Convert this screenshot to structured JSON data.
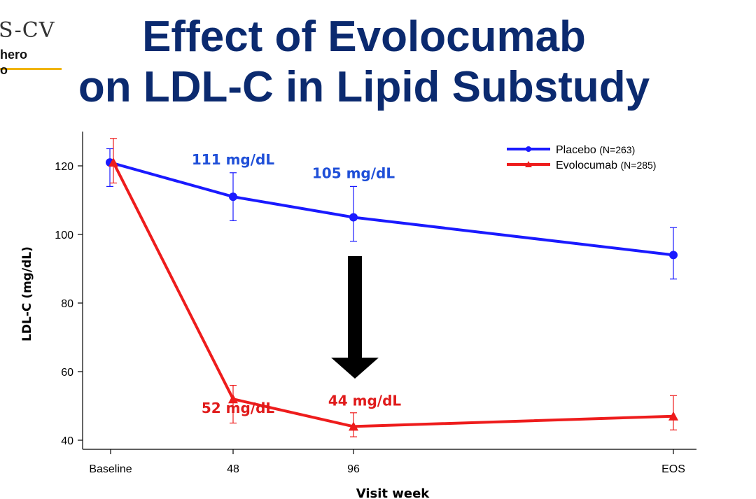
{
  "logo": {
    "text": "S-CV",
    "sub1": "hero",
    "sub2": "o"
  },
  "slide": {
    "title_line1": "Effect of Evolocumab",
    "title_line2": "on LDL-C in Lipid Substudy"
  },
  "chart_data": {
    "type": "line",
    "categories": [
      "Baseline",
      "48",
      "96",
      "EOS"
    ],
    "xlabel": "Visit week",
    "ylabel": "LDL-C (mg/dL)",
    "ylim": [
      38,
      130
    ],
    "yticks": [
      40,
      60,
      80,
      100,
      120
    ],
    "legend_position": "top-right",
    "series": [
      {
        "name": "Placebo (N=263)",
        "name_main": "Placebo",
        "name_n": "(N=263)",
        "color": "#1a1aff",
        "marker": "circle",
        "values": [
          121,
          111,
          105,
          94
        ],
        "err_low": [
          114,
          104,
          98,
          87
        ],
        "err_high": [
          125,
          118,
          114,
          102
        ]
      },
      {
        "name": "Evolocumab (N=285)",
        "name_main": "Evolocumab",
        "name_n": "(N=285)",
        "color": "#ee1c1c",
        "marker": "triangle",
        "values": [
          121,
          52,
          44,
          47
        ],
        "err_low": [
          115,
          45,
          41,
          43
        ],
        "err_high": [
          128,
          56,
          48,
          53
        ]
      }
    ],
    "annotations": [
      {
        "text": "111 mg/dL",
        "series": 0,
        "point": 1,
        "color": "#1f4fd8"
      },
      {
        "text": "105 mg/dL",
        "series": 0,
        "point": 2,
        "color": "#1f4fd8"
      },
      {
        "text": "44 mg/dL",
        "series": 1,
        "point": 2,
        "color": "#e01b1b"
      },
      {
        "text": "52 mg/dL",
        "series": 1,
        "point": 1,
        "color": "#e01b1b"
      }
    ],
    "arrow": {
      "direction": "down",
      "color": "#000000"
    }
  }
}
